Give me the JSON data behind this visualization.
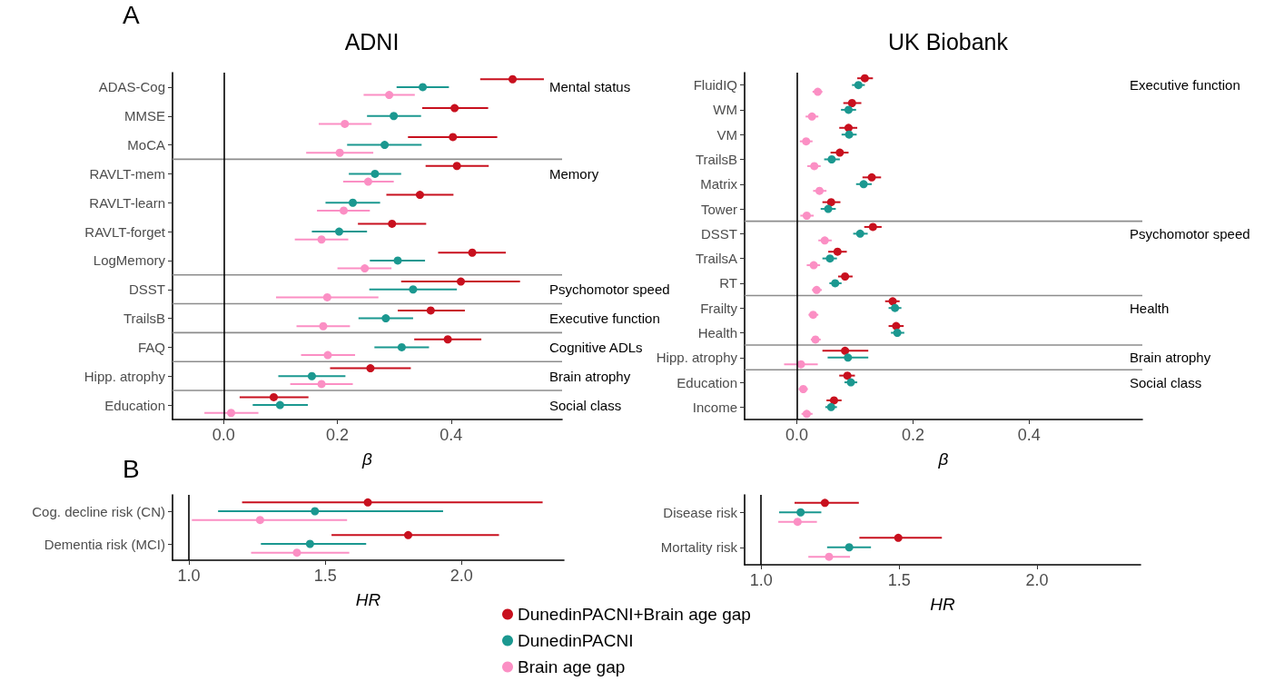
{
  "chart_data": [
    {
      "type": "scatter",
      "orientation": "horizontal",
      "title": "ADNI",
      "xlabel": "β",
      "categories": [
        "ADAS-Cog",
        "MMSE",
        "MoCA",
        "RAVLT-mem",
        "RAVLT-learn",
        "RAVLT-forget",
        "LogMemory",
        "DSST",
        "TrailsB",
        "FAQ",
        "Hipp. atrophy",
        "Education"
      ],
      "xlim": [
        -0.09,
        0.595
      ],
      "xticks": [
        {
          "value": 0,
          "label": "0.0"
        },
        {
          "value": 0.2,
          "label": "0.2"
        },
        {
          "value": 0.4,
          "label": "0.4"
        }
      ],
      "ref_lines": [
        {
          "axis": "x",
          "value": 0,
          "color": "#000000"
        }
      ],
      "annotations": [
        "A",
        "Mental status",
        "Memory",
        "Psychomotor speed",
        "Executive function",
        "Cognitive ADLs",
        "Brain atrophy",
        "Social class"
      ],
      "series": [
        {
          "color": "#c8101e",
          "values": [
            0.508,
            0.406,
            0.403,
            0.41,
            0.345,
            0.296,
            0.437,
            0.417,
            0.364,
            0.394,
            0.258,
            0.088
          ],
          "errors": [
            [
              0.451,
              0.563
            ],
            [
              0.349,
              0.465
            ],
            [
              0.324,
              0.481
            ],
            [
              0.355,
              0.466
            ],
            [
              0.286,
              0.404
            ],
            [
              0.236,
              0.356
            ],
            [
              0.377,
              0.496
            ],
            [
              0.312,
              0.521
            ],
            [
              0.306,
              0.424
            ],
            [
              0.335,
              0.453
            ],
            [
              0.187,
              0.329
            ],
            [
              0.028,
              0.149
            ]
          ]
        },
        {
          "color": "#1b9890",
          "values": [
            0.35,
            0.299,
            0.283,
            0.266,
            0.227,
            0.203,
            0.306,
            0.333,
            0.285,
            0.313,
            0.155,
            0.099
          ],
          "errors": [
            [
              0.304,
              0.396
            ],
            [
              0.252,
              0.347
            ],
            [
              0.217,
              0.348
            ],
            [
              0.22,
              0.312
            ],
            [
              0.179,
              0.275
            ],
            [
              0.155,
              0.252
            ],
            [
              0.257,
              0.354
            ],
            [
              0.256,
              0.41
            ],
            [
              0.237,
              0.333
            ],
            [
              0.265,
              0.361
            ],
            [
              0.096,
              0.214
            ],
            [
              0.051,
              0.148
            ]
          ]
        },
        {
          "color": "#fb8fc4",
          "values": [
            0.291,
            0.213,
            0.204,
            0.254,
            0.211,
            0.172,
            0.248,
            0.182,
            0.175,
            0.183,
            0.172,
            0.013
          ],
          "errors": [
            [
              0.246,
              0.336
            ],
            [
              0.167,
              0.26
            ],
            [
              0.145,
              0.263
            ],
            [
              0.21,
              0.299
            ],
            [
              0.164,
              0.257
            ],
            [
              0.125,
              0.219
            ],
            [
              0.2,
              0.295
            ],
            [
              0.092,
              0.272
            ],
            [
              0.128,
              0.222
            ],
            [
              0.136,
              0.231
            ],
            [
              0.117,
              0.227
            ],
            [
              -0.034,
              0.061
            ]
          ]
        }
      ]
    },
    {
      "type": "scatter",
      "orientation": "horizontal",
      "title": "UK Biobank",
      "xlabel": "β",
      "categories": [
        "FluidIQ",
        "WM",
        "VM",
        "TrailsB",
        "Matrix",
        "Tower",
        "DSST",
        "TrailsA",
        "RT",
        "Frailty",
        "Health",
        "Hipp. atrophy",
        "Education",
        "Income"
      ],
      "xlim": [
        -0.09,
        0.595
      ],
      "xticks": [
        {
          "value": 0,
          "label": "0.0"
        },
        {
          "value": 0.2,
          "label": "0.2"
        },
        {
          "value": 0.4,
          "label": "0.4"
        }
      ],
      "ref_lines": [
        {
          "axis": "x",
          "value": 0,
          "color": "#000000"
        }
      ],
      "annotations": [
        "Executive function",
        "Psychomotor speed",
        "Health",
        "Brain atrophy",
        "Social class"
      ],
      "series": [
        {
          "color": "#c8101e",
          "values": [
            0.117,
            0.095,
            0.089,
            0.074,
            0.129,
            0.059,
            0.131,
            0.07,
            0.083,
            0.165,
            0.171,
            0.083,
            0.087,
            0.064
          ],
          "errors": [
            [
              0.104,
              0.131
            ],
            [
              0.08,
              0.111
            ],
            [
              0.073,
              0.104
            ],
            [
              0.058,
              0.089
            ],
            [
              0.113,
              0.145
            ],
            [
              0.044,
              0.075
            ],
            [
              0.116,
              0.146
            ],
            [
              0.054,
              0.086
            ],
            [
              0.071,
              0.096
            ],
            [
              0.152,
              0.177
            ],
            [
              0.158,
              0.184
            ],
            [
              0.044,
              0.123
            ],
            [
              0.073,
              0.1
            ],
            [
              0.051,
              0.077
            ]
          ]
        },
        {
          "color": "#1b9890",
          "values": [
            0.106,
            0.089,
            0.09,
            0.06,
            0.115,
            0.054,
            0.109,
            0.057,
            0.066,
            0.169,
            0.173,
            0.088,
            0.093,
            0.059
          ],
          "errors": [
            [
              0.095,
              0.117
            ],
            [
              0.076,
              0.102
            ],
            [
              0.077,
              0.103
            ],
            [
              0.047,
              0.074
            ],
            [
              0.102,
              0.129
            ],
            [
              0.041,
              0.067
            ],
            [
              0.097,
              0.122
            ],
            [
              0.044,
              0.069
            ],
            [
              0.056,
              0.077
            ],
            [
              0.158,
              0.18
            ],
            [
              0.162,
              0.185
            ],
            [
              0.053,
              0.123
            ],
            [
              0.082,
              0.104
            ],
            [
              0.049,
              0.069
            ]
          ]
        },
        {
          "color": "#fb8fc4",
          "values": [
            0.036,
            0.026,
            0.016,
            0.03,
            0.039,
            0.017,
            0.048,
            0.029,
            0.034,
            0.028,
            0.032,
            0.007,
            0.011,
            0.017
          ],
          "errors": [
            [
              0.027,
              0.044
            ],
            [
              0.015,
              0.037
            ],
            [
              0.005,
              0.027
            ],
            [
              0.018,
              0.041
            ],
            [
              0.028,
              0.051
            ],
            [
              0.006,
              0.029
            ],
            [
              0.037,
              0.06
            ],
            [
              0.017,
              0.04
            ],
            [
              0.026,
              0.043
            ],
            [
              0.02,
              0.037
            ],
            [
              0.024,
              0.041
            ],
            [
              -0.022,
              0.036
            ],
            [
              0.003,
              0.019
            ],
            [
              0.008,
              0.027
            ]
          ]
        }
      ]
    },
    {
      "type": "scatter",
      "orientation": "horizontal",
      "xlabel": "HR",
      "categories": [
        "Cog. decline risk (CN)",
        "Dementia risk (MCI)"
      ],
      "xlim": [
        0.94,
        2.375
      ],
      "xticks": [
        {
          "value": 1,
          "label": "1.0"
        },
        {
          "value": 1.5,
          "label": "1.5"
        },
        {
          "value": 2,
          "label": "2.0"
        }
      ],
      "legend": "bottom",
      "ref_lines": [
        {
          "axis": "x",
          "value": 1,
          "color": "#000000"
        }
      ],
      "annotations": [
        "B"
      ],
      "series": [
        {
          "name": "DunedinPACNI+Brain age gap",
          "color": "#c8101e",
          "values": [
            1.656,
            1.804
          ],
          "errors": [
            [
              1.195,
              2.297
            ],
            [
              1.523,
              2.137
            ]
          ]
        },
        {
          "name": "DunedinPACNI",
          "color": "#1b9890",
          "values": [
            1.462,
            1.444
          ],
          "errors": [
            [
              1.107,
              1.932
            ],
            [
              1.264,
              1.65
            ]
          ]
        },
        {
          "name": "Brain age gap",
          "color": "#fb8fc4",
          "values": [
            1.261,
            1.396
          ],
          "errors": [
            [
              1.011,
              1.58
            ],
            [
              1.228,
              1.588
            ]
          ]
        }
      ]
    },
    {
      "type": "scatter",
      "orientation": "horizontal",
      "xlabel": "HR",
      "categories": [
        "Disease risk",
        "Mortality risk"
      ],
      "xlim": [
        0.94,
        2.375
      ],
      "xticks": [
        {
          "value": 1,
          "label": "1.0"
        },
        {
          "value": 1.5,
          "label": "1.5"
        },
        {
          "value": 2,
          "label": "2.0"
        }
      ],
      "ref_lines": [
        {
          "axis": "x",
          "value": 1,
          "color": "#000000"
        }
      ],
      "series": [
        {
          "color": "#c8101e",
          "values": [
            1.231,
            1.497
          ],
          "errors": [
            [
              1.121,
              1.354
            ],
            [
              1.356,
              1.655
            ]
          ]
        },
        {
          "color": "#1b9890",
          "values": [
            1.143,
            1.319
          ],
          "errors": [
            [
              1.065,
              1.218
            ],
            [
              1.239,
              1.398
            ]
          ]
        },
        {
          "color": "#fb8fc4",
          "values": [
            1.132,
            1.246
          ],
          "errors": [
            [
              1.062,
              1.202
            ],
            [
              1.171,
              1.322
            ]
          ]
        }
      ]
    }
  ]
}
